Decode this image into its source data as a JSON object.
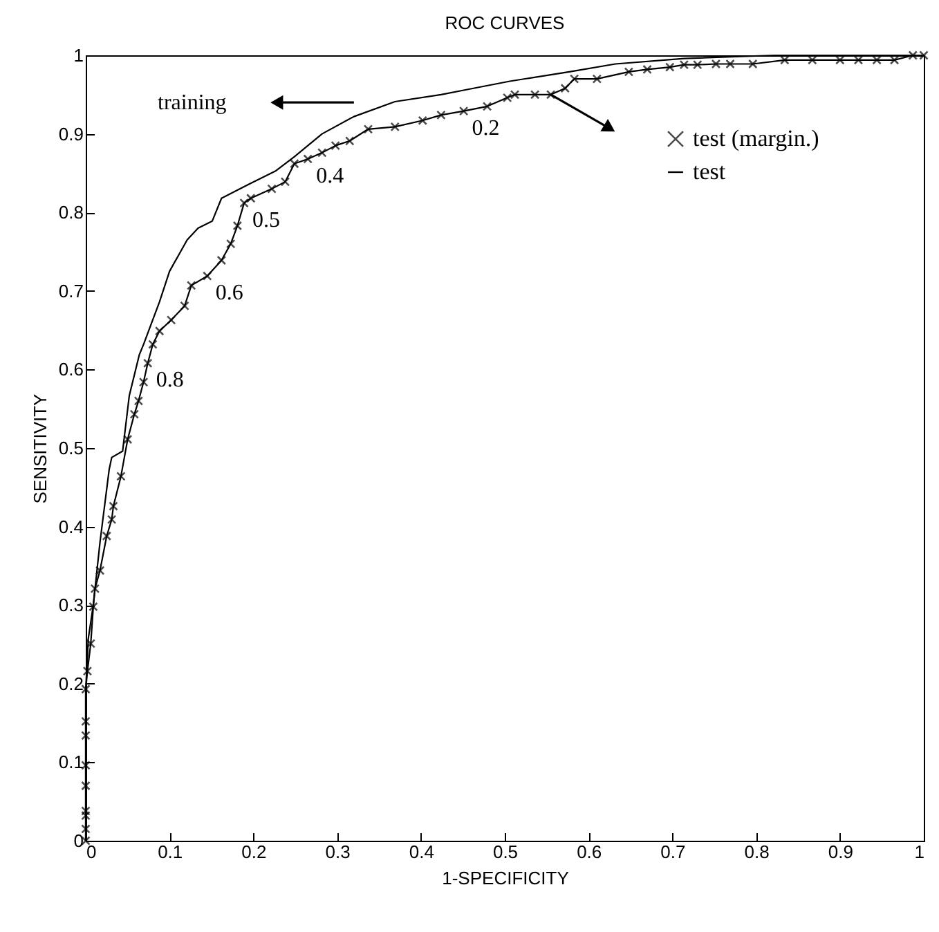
{
  "chart_data": {
    "type": "line",
    "title": "ROC CURVES",
    "xlabel": "1-SPECIFICITY",
    "ylabel": "SENSITIVITY",
    "xlim": [
      0,
      1
    ],
    "ylim": [
      0,
      1
    ],
    "xticks": [
      0,
      0.1,
      0.2,
      0.3,
      0.4,
      0.5,
      0.6,
      0.7,
      0.8,
      0.9,
      1
    ],
    "yticks": [
      0,
      0.1,
      0.2,
      0.3,
      0.4,
      0.5,
      0.6,
      0.7,
      0.8,
      0.9,
      1
    ],
    "grid": false,
    "legend": "top right",
    "line_style": "solid",
    "series": [
      {
        "color": "#000000",
        "x": [
          0,
          0,
          0.003,
          0.009,
          0.017,
          0.028,
          0.031,
          0.044,
          0.052,
          0.064,
          0.069,
          0.088,
          0.1,
          0.121,
          0.134,
          0.151,
          0.162,
          0.195,
          0.227,
          0.249,
          0.282,
          0.32,
          0.369,
          0.424,
          0.453,
          0.506,
          0.577,
          0.632,
          0.714,
          0.822,
          1
        ],
        "values": [
          0,
          0.192,
          0.257,
          0.3,
          0.38,
          0.473,
          0.488,
          0.496,
          0.567,
          0.619,
          0.632,
          0.686,
          0.725,
          0.765,
          0.78,
          0.789,
          0.818,
          0.836,
          0.853,
          0.871,
          0.9,
          0.922,
          0.941,
          0.95,
          0.956,
          0.967,
          0.979,
          0.989,
          0.996,
          1,
          1
        ]
      },
      {
        "name": "test",
        "color": "#000000",
        "x": [
          0,
          0,
          0,
          0,
          0,
          0,
          0,
          0,
          0,
          0.002,
          0.006,
          0.009,
          0.011,
          0.017,
          0.025,
          0.031,
          0.033,
          0.042,
          0.05,
          0.058,
          0.063,
          0.069,
          0.074,
          0.08,
          0.088,
          0.102,
          0.118,
          0.126,
          0.145,
          0.162,
          0.173,
          0.181,
          0.189,
          0.197,
          0.222,
          0.238,
          0.249,
          0.265,
          0.282,
          0.298,
          0.315,
          0.337,
          0.369,
          0.402,
          0.424,
          0.451,
          0.479,
          0.503,
          0.512,
          0.536,
          0.555,
          0.572,
          0.583,
          0.61,
          0.648,
          0.67,
          0.697,
          0.714,
          0.73,
          0.752,
          0.769,
          0.796,
          0.834,
          0.867,
          0.9,
          0.922,
          0.944,
          0.965,
          0.987,
          1
        ],
        "values": [
          0,
          0.015,
          0.032,
          0.038,
          0.07,
          0.096,
          0.134,
          0.152,
          0.193,
          0.216,
          0.251,
          0.298,
          0.321,
          0.344,
          0.388,
          0.409,
          0.426,
          0.464,
          0.511,
          0.543,
          0.56,
          0.584,
          0.608,
          0.632,
          0.649,
          0.663,
          0.681,
          0.707,
          0.719,
          0.739,
          0.76,
          0.783,
          0.812,
          0.818,
          0.83,
          0.839,
          0.862,
          0.868,
          0.876,
          0.885,
          0.891,
          0.906,
          0.909,
          0.917,
          0.924,
          0.929,
          0.935,
          0.946,
          0.95,
          0.95,
          0.95,
          0.958,
          0.97,
          0.97,
          0.979,
          0.982,
          0.985,
          0.988,
          0.988,
          0.989,
          0.989,
          0.989,
          0.994,
          0.994,
          0.994,
          0.994,
          0.994,
          0.994,
          1,
          1
        ]
      },
      {
        "type": "scatter",
        "name": "test (margin.)",
        "color": "#000000",
        "marker": "cross",
        "x": [
          0,
          0,
          0,
          0,
          0,
          0,
          0,
          0,
          0,
          0.002,
          0.006,
          0.009,
          0.011,
          0.017,
          0.025,
          0.031,
          0.033,
          0.042,
          0.05,
          0.058,
          0.063,
          0.069,
          0.074,
          0.08,
          0.088,
          0.102,
          0.118,
          0.126,
          0.145,
          0.162,
          0.173,
          0.181,
          0.189,
          0.197,
          0.222,
          0.238,
          0.249,
          0.265,
          0.282,
          0.298,
          0.315,
          0.337,
          0.369,
          0.402,
          0.424,
          0.451,
          0.479,
          0.503,
          0.512,
          0.536,
          0.555,
          0.572,
          0.583,
          0.61,
          0.648,
          0.67,
          0.697,
          0.714,
          0.73,
          0.752,
          0.769,
          0.796,
          0.834,
          0.867,
          0.9,
          0.922,
          0.944,
          0.965,
          0.987,
          1
        ],
        "values": [
          0,
          0.015,
          0.032,
          0.038,
          0.07,
          0.096,
          0.134,
          0.152,
          0.193,
          0.216,
          0.251,
          0.298,
          0.321,
          0.344,
          0.388,
          0.409,
          0.426,
          0.464,
          0.511,
          0.543,
          0.56,
          0.584,
          0.608,
          0.632,
          0.649,
          0.663,
          0.681,
          0.707,
          0.719,
          0.739,
          0.76,
          0.783,
          0.812,
          0.818,
          0.83,
          0.839,
          0.862,
          0.868,
          0.876,
          0.885,
          0.891,
          0.906,
          0.909,
          0.917,
          0.924,
          0.929,
          0.935,
          0.946,
          0.95,
          0.95,
          0.95,
          0.958,
          0.97,
          0.97,
          0.979,
          0.982,
          0.985,
          0.988,
          0.988,
          0.989,
          0.989,
          0.989,
          0.994,
          0.994,
          0.994,
          0.994,
          0.994,
          0.994,
          1,
          1
        ]
      }
    ],
    "annotations": [
      "training",
      {
        "text": "0.2",
        "x": 0.451,
        "y": 0.929
      },
      {
        "text": "0.4",
        "x": 0.265,
        "y": 0.868
      },
      {
        "text": "0.5",
        "x": 0.189,
        "y": 0.812
      },
      {
        "text": "0.6",
        "x": 0.145,
        "y": 0.719
      },
      {
        "text": "0.8",
        "x": 0.074,
        "y": 0.608
      }
    ]
  }
}
